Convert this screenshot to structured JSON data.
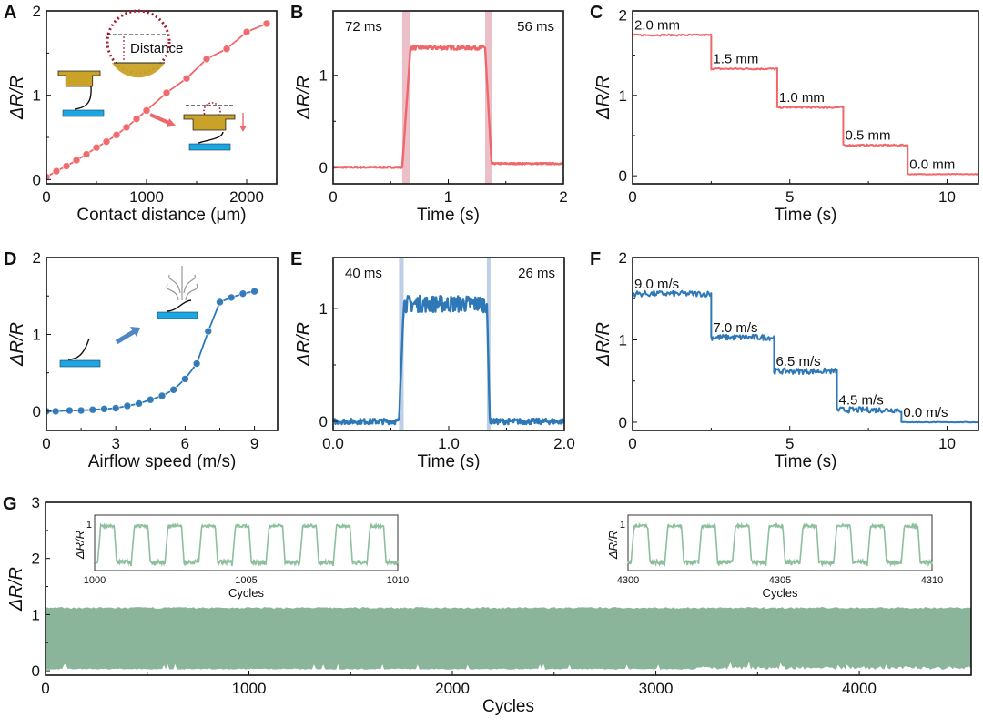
{
  "colors": {
    "red": "#f0676a",
    "red_band": "#e8b4bd",
    "blue": "#2e78b8",
    "blue_band": "#b3c8e3",
    "green": "#8ab59b",
    "green_line": "#8dbf9f",
    "gold": "#c9a227",
    "cyan": "#1da6e0",
    "dotted": "#a8182b"
  },
  "chart_data": [
    {
      "id": "A",
      "type": "line",
      "letter": "A",
      "xlabel": "Contact distance (μm)",
      "ylabel": "ΔR/R",
      "xlim": [
        0,
        2300
      ],
      "ylim": [
        -0.05,
        2
      ],
      "xticks": [
        0,
        1000,
        2000
      ],
      "xtick_labels": [
        "0",
        "1000",
        "2000"
      ],
      "yticks": [
        0,
        1,
        2
      ],
      "ytick_labels": [
        "0",
        "1",
        "2"
      ],
      "inset_label": "Distance",
      "series": [
        {
          "name": "contact",
          "color_key": "red",
          "markers": true,
          "x": [
            0,
            100,
            200,
            300,
            400,
            500,
            600,
            700,
            800,
            900,
            1000,
            1200,
            1400,
            1600,
            1800,
            2000,
            2200
          ],
          "y": [
            0.03,
            0.1,
            0.16,
            0.23,
            0.3,
            0.38,
            0.45,
            0.53,
            0.62,
            0.72,
            0.82,
            1.03,
            1.2,
            1.43,
            1.55,
            1.75,
            1.85
          ]
        }
      ]
    },
    {
      "id": "B",
      "type": "line",
      "letter": "B",
      "xlabel": "Time (s)",
      "ylabel": "ΔR/R",
      "xlim": [
        0,
        2
      ],
      "ylim": [
        -0.18,
        1.7
      ],
      "xticks": [
        0,
        1,
        2
      ],
      "xtick_labels": [
        "0",
        "1",
        "2"
      ],
      "yticks": [
        0,
        1
      ],
      "ytick_labels": [
        "0",
        "1"
      ],
      "bands": [
        [
          0.6,
          0.672
        ],
        [
          1.32,
          1.376
        ]
      ],
      "annotations": [
        "72 ms",
        "56 ms"
      ],
      "series": [
        {
          "name": "response",
          "color_key": "red",
          "pulse": {
            "low": 0.0,
            "high": 1.3,
            "rise": [
              0.6,
              0.672
            ],
            "fall": [
              1.32,
              1.376
            ],
            "low_after": 0.04,
            "noise": 0.015
          }
        }
      ]
    },
    {
      "id": "C",
      "type": "line",
      "letter": "C",
      "xlabel": "Time (s)",
      "ylabel": "ΔR/R",
      "xlim": [
        0,
        11
      ],
      "ylim": [
        -0.1,
        2.05
      ],
      "xticks": [
        0,
        5,
        10
      ],
      "xtick_labels": [
        "0",
        "5",
        "10"
      ],
      "yticks": [
        0,
        1,
        2
      ],
      "ytick_labels": [
        "0",
        "1",
        "2"
      ],
      "series": [
        {
          "name": "steps",
          "color_key": "red",
          "steps": [
            {
              "x0": 0,
              "x1": 2.5,
              "y": 1.75,
              "label": "2.0 mm"
            },
            {
              "x0": 2.5,
              "x1": 4.6,
              "y": 1.33,
              "label": "1.5 mm"
            },
            {
              "x0": 4.6,
              "x1": 6.7,
              "y": 0.85,
              "label": "1.0 mm"
            },
            {
              "x0": 6.7,
              "x1": 8.75,
              "y": 0.38,
              "label": "0.5 mm"
            },
            {
              "x0": 8.75,
              "x1": 11,
              "y": 0.02,
              "label": "0.0 mm"
            }
          ],
          "noise": 0.01
        }
      ]
    },
    {
      "id": "D",
      "type": "line",
      "letter": "D",
      "xlabel": "Airflow speed (m/s)",
      "ylabel": "ΔR/R",
      "xlim": [
        0,
        10
      ],
      "ylim": [
        -0.25,
        2
      ],
      "xticks": [
        0,
        3,
        6,
        9
      ],
      "xtick_labels": [
        "0",
        "3",
        "6",
        "9"
      ],
      "yticks": [
        0,
        1,
        2
      ],
      "ytick_labels": [
        "0",
        "1",
        "2"
      ],
      "series": [
        {
          "name": "airflow",
          "color_key": "blue",
          "markers": true,
          "x": [
            0,
            0.4,
            1,
            1.5,
            2,
            2.5,
            3,
            3.5,
            4,
            4.5,
            5,
            5.5,
            6,
            6.5,
            7,
            7.5,
            8,
            8.5,
            9
          ],
          "y": [
            0.0,
            0.0,
            0.01,
            0.01,
            0.02,
            0.03,
            0.04,
            0.07,
            0.1,
            0.15,
            0.2,
            0.28,
            0.42,
            0.62,
            1.04,
            1.42,
            1.48,
            1.53,
            1.56
          ]
        }
      ]
    },
    {
      "id": "E",
      "type": "line",
      "letter": "E",
      "xlabel": "Time (s)",
      "ylabel": "ΔR/R",
      "xlim": [
        0,
        2
      ],
      "ylim": [
        -0.08,
        1.45
      ],
      "xticks": [
        0,
        1,
        2
      ],
      "xtick_labels": [
        "0.0",
        "1.0",
        "2.0"
      ],
      "yticks": [
        0,
        1
      ],
      "ytick_labels": [
        "0",
        "1"
      ],
      "bands": [
        [
          0.57,
          0.61
        ],
        [
          1.33,
          1.356
        ]
      ],
      "annotations": [
        "40 ms",
        "26 ms"
      ],
      "series": [
        {
          "name": "response",
          "color_key": "blue",
          "pulse": {
            "low": 0.0,
            "high": 1.04,
            "rise": [
              0.57,
              0.61
            ],
            "fall": [
              1.33,
              1.356
            ],
            "low_after": 0.0,
            "noise": 0.05
          }
        }
      ]
    },
    {
      "id": "F",
      "type": "line",
      "letter": "F",
      "xlabel": "Time (s)",
      "ylabel": "ΔR/R",
      "xlim": [
        0,
        11
      ],
      "ylim": [
        -0.1,
        2
      ],
      "xticks": [
        0,
        5,
        10
      ],
      "xtick_labels": [
        "0",
        "5",
        "10"
      ],
      "yticks": [
        0,
        1,
        2
      ],
      "ytick_labels": [
        "0",
        "1",
        "2"
      ],
      "series": [
        {
          "name": "steps",
          "color_key": "blue",
          "steps": [
            {
              "x0": 0,
              "x1": 2.5,
              "y": 1.56,
              "label": "9.0 m/s"
            },
            {
              "x0": 2.5,
              "x1": 4.5,
              "y": 1.03,
              "label": "7.0 m/s"
            },
            {
              "x0": 4.5,
              "x1": 6.5,
              "y": 0.62,
              "label": "6.5 m/s"
            },
            {
              "x0": 6.5,
              "x1": 8.55,
              "y": 0.15,
              "label": "4.5 m/s"
            },
            {
              "x0": 8.55,
              "x1": 11,
              "y": 0.0,
              "label": "0.0 m/s"
            }
          ],
          "noise": 0.035
        }
      ]
    },
    {
      "id": "G",
      "type": "area",
      "letter": "G",
      "xlabel": "Cycles",
      "ylabel": "ΔR/R",
      "xlim": [
        0,
        4550
      ],
      "ylim": [
        -0.08,
        3
      ],
      "xticks": [
        0,
        1000,
        2000,
        3000,
        4000
      ],
      "xtick_labels": [
        "0",
        "1000",
        "2000",
        "3000",
        "4000"
      ],
      "yticks": [
        0,
        1,
        2,
        3
      ],
      "ytick_labels": [
        "0",
        "1",
        "2",
        "3"
      ],
      "band": {
        "top": 1.12,
        "bottom": 0.02
      },
      "insets": [
        {
          "xlim": [
            1000,
            1010
          ],
          "xtick_labels": [
            "1000",
            "1005",
            "1010"
          ],
          "xlabel": "Cycles",
          "ylabel": "ΔR/R",
          "ytick_label": "1",
          "cycles": 9
        },
        {
          "xlim": [
            4300,
            4310
          ],
          "xtick_labels": [
            "4300",
            "4305",
            "4310"
          ],
          "xlabel": "Cycles",
          "ylabel": "ΔR/R",
          "ytick_label": "1",
          "cycles": 9
        }
      ]
    }
  ]
}
